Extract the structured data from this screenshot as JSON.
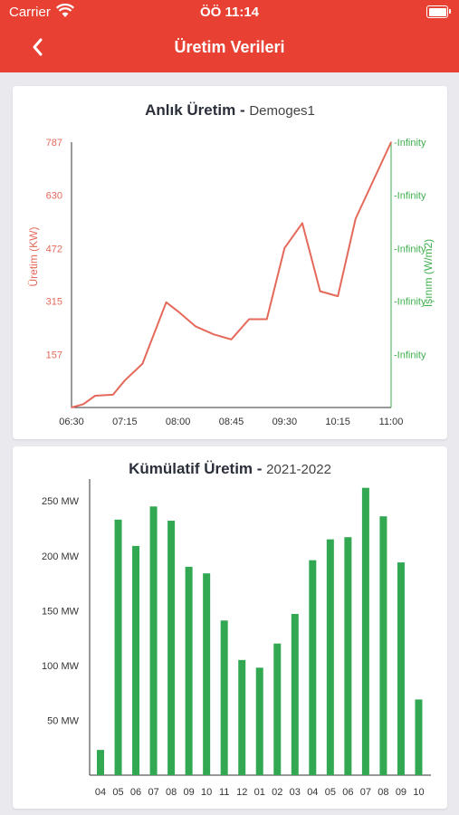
{
  "status_bar": {
    "carrier": "Carrier",
    "time": "ÖÖ 11:14"
  },
  "header": {
    "title": "Üretim Verileri",
    "back_icon": "chevron-left-icon"
  },
  "colors": {
    "header_bg": "#e84134",
    "line": "#e5695a",
    "right_axis": "#3fae4f",
    "bar": "#33a852"
  },
  "instant_chart": {
    "title": "Anlık Üretim",
    "separator": " - ",
    "subtitle": "Demoges1",
    "chart_data": {
      "type": "line",
      "x": [
        "06:30",
        "06:40",
        "06:50",
        "07:05",
        "07:15",
        "07:30",
        "07:50",
        "08:00",
        "08:15",
        "08:30",
        "08:45",
        "09:00",
        "09:15",
        "09:30",
        "09:45",
        "10:00",
        "10:15",
        "10:30",
        "11:00"
      ],
      "series": [
        {
          "values": [
            0,
            10,
            35,
            38,
            80,
            130,
            312,
            285,
            240,
            217,
            202,
            262,
            262,
            473,
            547,
            345,
            330,
            560,
            787
          ]
        }
      ],
      "xlabel": "",
      "ylabel": "Üretim (KW)",
      "y2label": "Işınım (W/m2)",
      "xticks": [
        "06:30",
        "07:15",
        "08:00",
        "08:45",
        "09:30",
        "10:15",
        "11:00"
      ],
      "yticks": [
        "787",
        "630",
        "472",
        "315",
        "157"
      ],
      "y2ticks": [
        "-Infinity",
        "-Infinity",
        "-Infinity",
        "-Infinity",
        "-Infinity"
      ],
      "ylim": [
        0,
        787
      ],
      "grid": false
    }
  },
  "cumulative_chart": {
    "title": "Kümülatif Üretim",
    "separator": " - ",
    "subtitle": "2021-2022",
    "chart_data": {
      "type": "bar",
      "categories": [
        "04",
        "05",
        "06",
        "07",
        "08",
        "09",
        "10",
        "11",
        "12",
        "01",
        "02",
        "03",
        "04",
        "05",
        "06",
        "07",
        "08",
        "09",
        "10"
      ],
      "values": [
        23,
        233,
        209,
        245,
        232,
        190,
        184,
        141,
        105,
        98,
        120,
        147,
        196,
        215,
        217,
        262,
        236,
        194,
        69
      ],
      "yticks": [
        "250 MW",
        "200 MW",
        "150 MW",
        "100 MW",
        "50 MW"
      ],
      "ytick_values": [
        250,
        200,
        150,
        100,
        50
      ],
      "ylim": [
        0,
        270
      ],
      "grid": false
    }
  }
}
